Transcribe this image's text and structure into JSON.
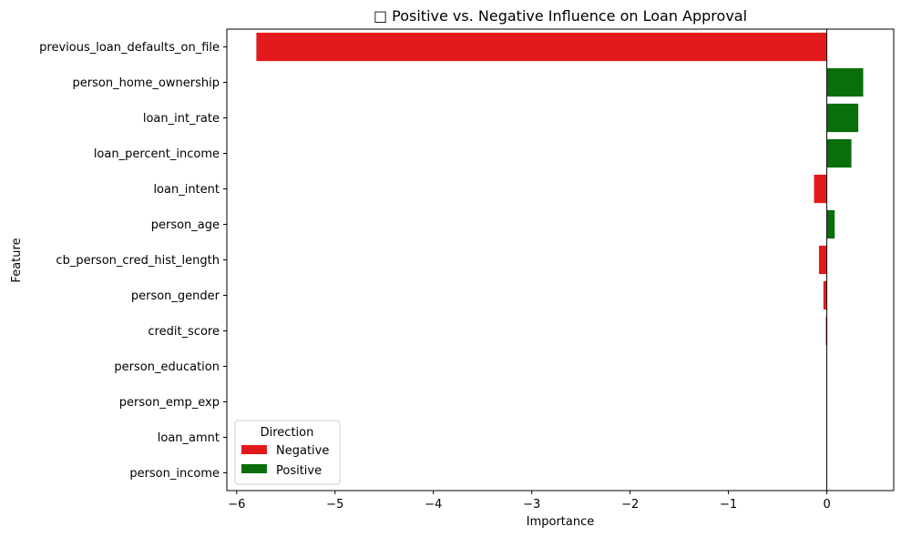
{
  "chart_data": {
    "type": "bar",
    "orientation": "horizontal",
    "title": "□ Positive vs. Negative Influence on Loan Approval",
    "xlabel": "Importance",
    "ylabel": "Feature",
    "xlim": [
      -6.1,
      0.68
    ],
    "xticks": [
      -6,
      -5,
      -4,
      -3,
      -2,
      -1,
      0
    ],
    "xtick_labels": [
      "−6",
      "−5",
      "−4",
      "−3",
      "−2",
      "−1",
      "0"
    ],
    "categories": [
      "previous_loan_defaults_on_file",
      "person_home_ownership",
      "loan_int_rate",
      "loan_percent_income",
      "loan_intent",
      "person_age",
      "cb_person_cred_hist_length",
      "person_gender",
      "credit_score",
      "person_education",
      "person_emp_exp",
      "loan_amnt",
      "person_income"
    ],
    "values": [
      -5.8,
      0.37,
      0.32,
      0.25,
      -0.13,
      0.08,
      -0.08,
      -0.035,
      -0.01,
      0.0,
      0.0,
      0.0,
      0.0
    ],
    "directions": [
      "Negative",
      "Positive",
      "Positive",
      "Positive",
      "Negative",
      "Positive",
      "Negative",
      "Negative",
      "Negative",
      "Positive",
      "Positive",
      "Positive",
      "Positive"
    ],
    "legend": {
      "title": "Direction",
      "placement": "lower-left",
      "entries": [
        {
          "name": "Negative",
          "color": "#e31a1c"
        },
        {
          "name": "Positive",
          "color": "#0a6e0a"
        }
      ]
    },
    "grid": false
  }
}
